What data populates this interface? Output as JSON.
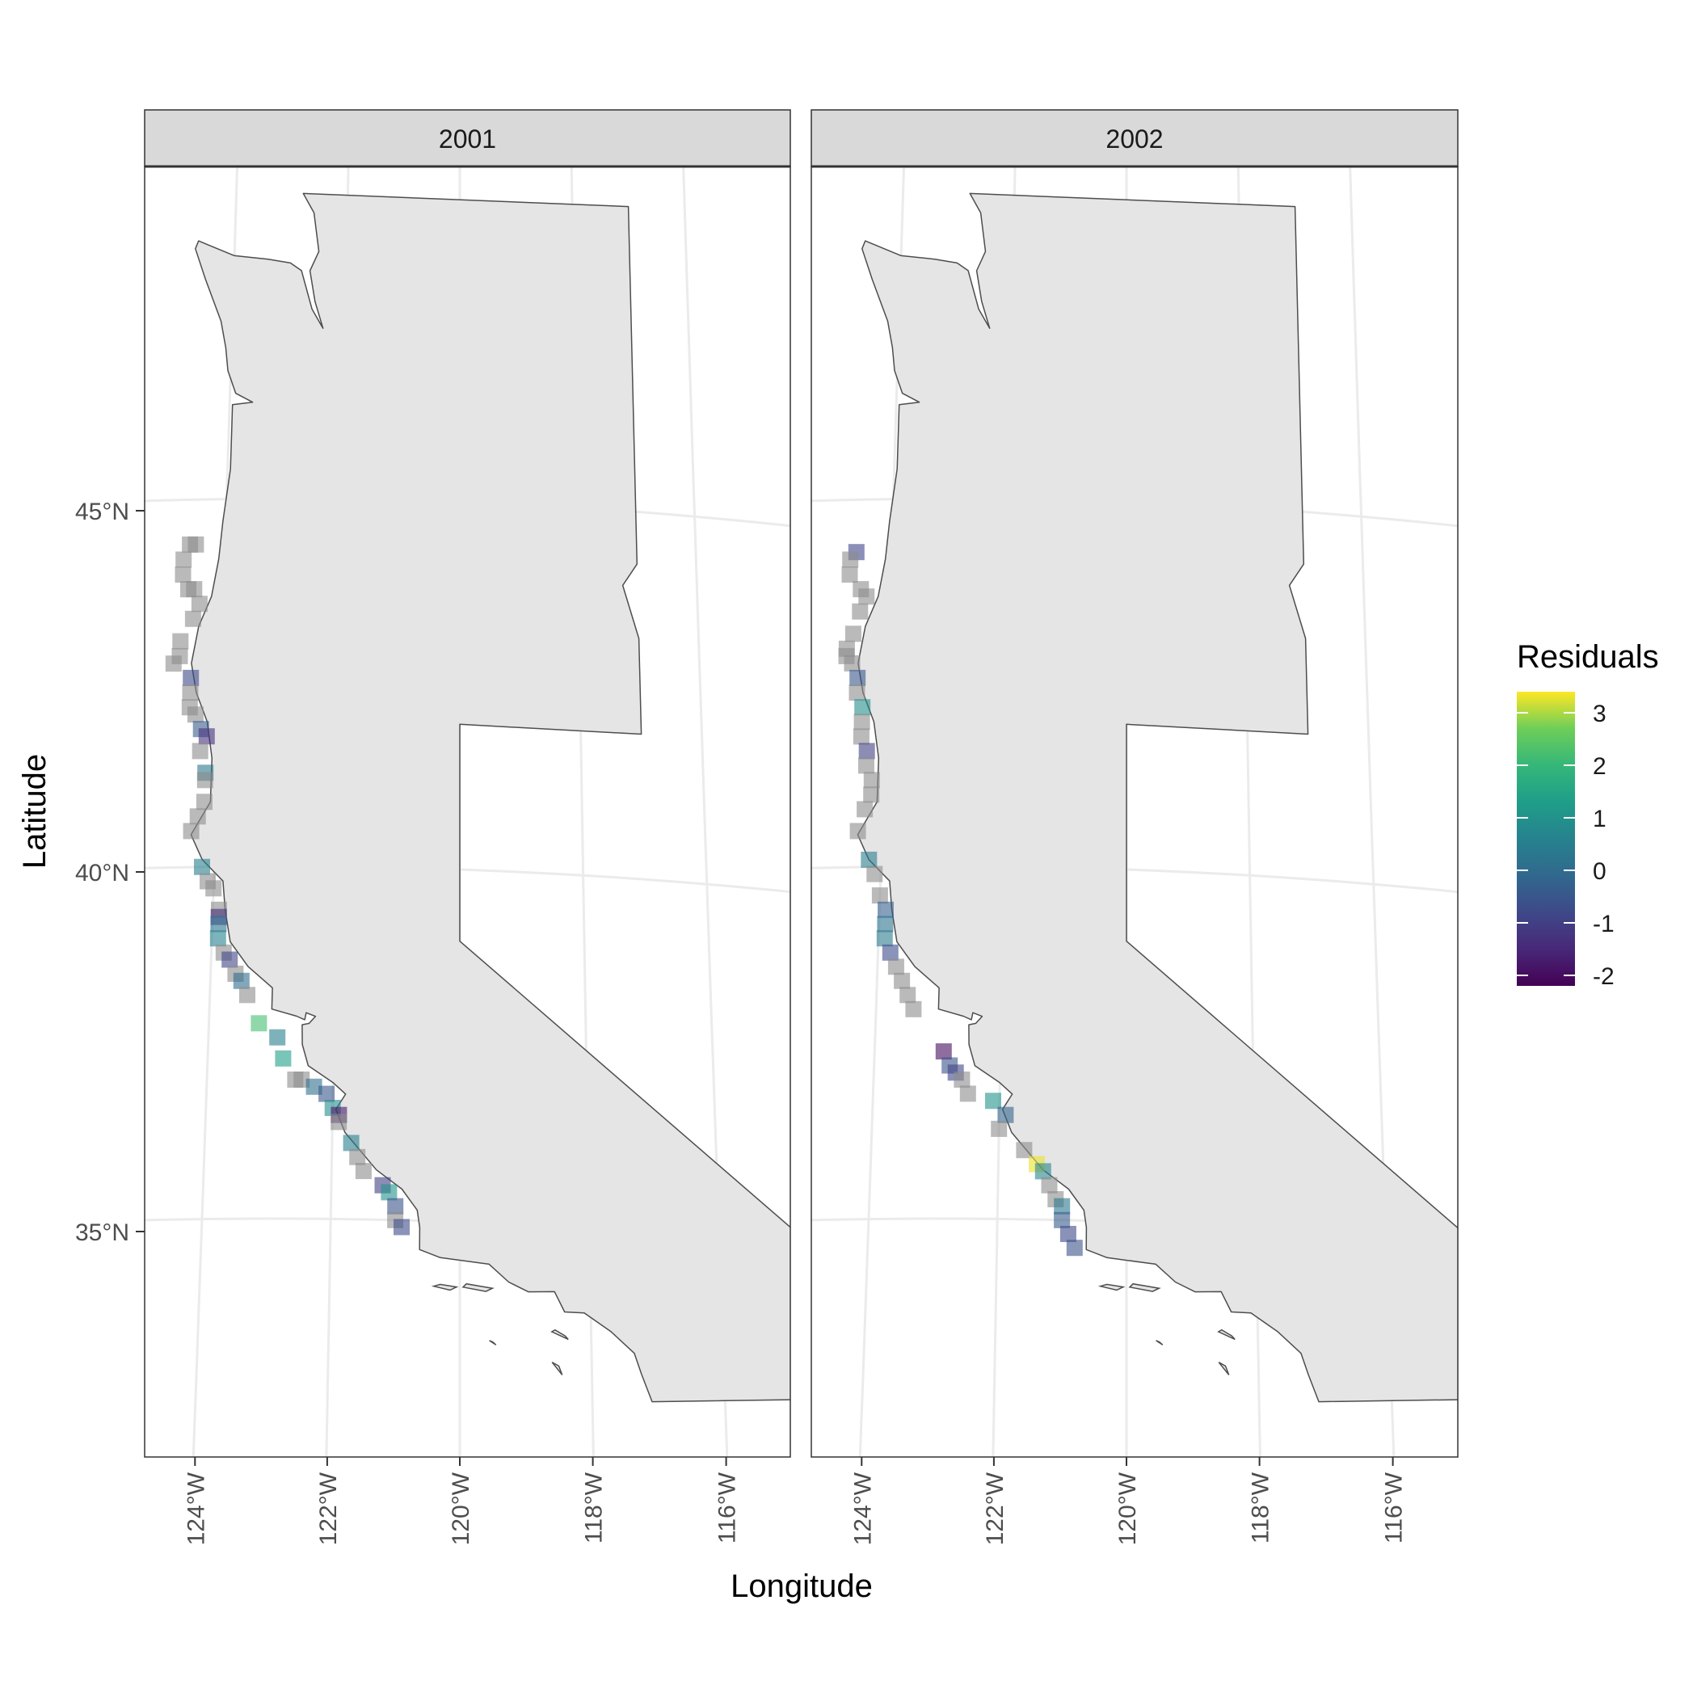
{
  "chart_data": {
    "type": "map",
    "title": "",
    "xlabel": "Longitude",
    "ylabel": "Latitude",
    "xlim": [
      -125.2,
      -114.3
    ],
    "ylim": [
      32.2,
      49.0
    ],
    "x_ticks": [
      {
        "value": -124,
        "label": "124°W"
      },
      {
        "value": -122,
        "label": "122°W"
      },
      {
        "value": -120,
        "label": "120°W"
      },
      {
        "value": -118,
        "label": "118°W"
      },
      {
        "value": -116,
        "label": "116°W"
      }
    ],
    "y_ticks": [
      {
        "value": 45,
        "label": "45°N"
      },
      {
        "value": 40,
        "label": "40°N"
      },
      {
        "value": 35,
        "label": "35°N"
      }
    ],
    "grid": true,
    "legend": {
      "title": "Residuals",
      "placement": "right",
      "colorscale": "viridis",
      "range": [
        -2.2,
        3.4
      ],
      "breaks": [
        {
          "value": 3,
          "label": "3"
        },
        {
          "value": 2,
          "label": "2"
        },
        {
          "value": 1,
          "label": "1"
        },
        {
          "value": 0,
          "label": "0"
        },
        {
          "value": -1,
          "label": "-1"
        },
        {
          "value": -2,
          "label": "-2"
        }
      ]
    },
    "colors": {
      "land_fill": "#e5e5e5",
      "land_stroke": "#4d4d4d",
      "na_point": "#8c8c8c",
      "strip_fill": "#d9d9d9",
      "grid": "#ebebeb"
    },
    "panels": [
      {
        "label": "2001",
        "points": [
          [
            -124.6,
            44.4,
            null
          ],
          [
            -124.5,
            44.4,
            null
          ],
          [
            -124.7,
            44.2,
            null
          ],
          [
            -124.7,
            44.0,
            null
          ],
          [
            -124.5,
            43.8,
            null
          ],
          [
            -124.6,
            43.8,
            null
          ],
          [
            -124.4,
            43.6,
            null
          ],
          [
            -124.5,
            43.4,
            null
          ],
          [
            -124.7,
            43.1,
            null
          ],
          [
            -124.7,
            42.9,
            null
          ],
          [
            -124.8,
            42.8,
            null
          ],
          [
            -124.5,
            42.6,
            -0.8
          ],
          [
            -124.5,
            42.4,
            null
          ],
          [
            -124.5,
            42.2,
            null
          ],
          [
            -124.4,
            42.1,
            null
          ],
          [
            -124.3,
            41.9,
            -0.4
          ],
          [
            -124.2,
            41.8,
            -1.3
          ],
          [
            -124.3,
            41.6,
            null
          ],
          [
            -124.2,
            41.3,
            0.3
          ],
          [
            -124.2,
            41.2,
            null
          ],
          [
            -124.2,
            40.9,
            null
          ],
          [
            -124.3,
            40.7,
            null
          ],
          [
            -124.4,
            40.5,
            null
          ],
          [
            -124.2,
            40.0,
            0.5
          ],
          [
            -124.1,
            39.8,
            null
          ],
          [
            -124.0,
            39.7,
            null
          ],
          [
            -123.9,
            39.4,
            null
          ],
          [
            -123.9,
            39.3,
            -1.4
          ],
          [
            -123.9,
            39.2,
            0.2
          ],
          [
            -123.9,
            39.0,
            0.6
          ],
          [
            -123.8,
            38.8,
            null
          ],
          [
            -123.7,
            38.7,
            -0.9
          ],
          [
            -123.6,
            38.5,
            null
          ],
          [
            -123.5,
            38.4,
            0.0
          ],
          [
            -123.4,
            38.2,
            null
          ],
          [
            -123.2,
            37.8,
            2.2
          ],
          [
            -122.9,
            37.6,
            0.5
          ],
          [
            -122.8,
            37.3,
            1.3
          ],
          [
            -122.6,
            37.0,
            null
          ],
          [
            -122.5,
            37.0,
            null
          ],
          [
            -122.3,
            36.9,
            0.1
          ],
          [
            -122.1,
            36.8,
            -0.5
          ],
          [
            -122.0,
            36.6,
            0.9
          ],
          [
            -121.9,
            36.5,
            -1.8
          ],
          [
            -121.9,
            36.4,
            null
          ],
          [
            -121.7,
            36.1,
            0.5
          ],
          [
            -121.6,
            35.9,
            null
          ],
          [
            -121.5,
            35.7,
            null
          ],
          [
            -121.2,
            35.5,
            -1.0
          ],
          [
            -121.1,
            35.4,
            1.0
          ],
          [
            -121.0,
            35.2,
            -0.6
          ],
          [
            -121.0,
            35.0,
            null
          ],
          [
            -120.9,
            34.9,
            -0.7
          ]
        ]
      },
      {
        "label": "2002",
        "points": [
          [
            -124.6,
            44.3,
            -0.9
          ],
          [
            -124.7,
            44.2,
            null
          ],
          [
            -124.7,
            44.0,
            null
          ],
          [
            -124.5,
            43.8,
            null
          ],
          [
            -124.4,
            43.7,
            null
          ],
          [
            -124.5,
            43.5,
            null
          ],
          [
            -124.6,
            43.2,
            null
          ],
          [
            -124.7,
            43.0,
            null
          ],
          [
            -124.7,
            42.9,
            null
          ],
          [
            -124.6,
            42.8,
            null
          ],
          [
            -124.5,
            42.6,
            -0.5
          ],
          [
            -124.5,
            42.4,
            null
          ],
          [
            -124.4,
            42.2,
            0.9
          ],
          [
            -124.4,
            42.0,
            null
          ],
          [
            -124.4,
            41.8,
            null
          ],
          [
            -124.3,
            41.6,
            -1.0
          ],
          [
            -124.3,
            41.4,
            null
          ],
          [
            -124.2,
            41.2,
            null
          ],
          [
            -124.2,
            41.0,
            null
          ],
          [
            -124.3,
            40.8,
            null
          ],
          [
            -124.4,
            40.5,
            null
          ],
          [
            -124.2,
            40.1,
            0.4
          ],
          [
            -124.1,
            39.9,
            null
          ],
          [
            -124.0,
            39.6,
            null
          ],
          [
            -123.9,
            39.4,
            -0.3
          ],
          [
            -123.9,
            39.2,
            0.2
          ],
          [
            -123.9,
            39.0,
            0.4
          ],
          [
            -123.8,
            38.8,
            -0.7
          ],
          [
            -123.7,
            38.6,
            null
          ],
          [
            -123.6,
            38.4,
            null
          ],
          [
            -123.5,
            38.2,
            null
          ],
          [
            -123.4,
            38.0,
            null
          ],
          [
            -122.9,
            37.4,
            -2.0
          ],
          [
            -122.8,
            37.2,
            -0.6
          ],
          [
            -122.7,
            37.1,
            -0.9
          ],
          [
            -122.6,
            37.0,
            null
          ],
          [
            -122.5,
            36.8,
            null
          ],
          [
            -122.1,
            36.7,
            1.0
          ],
          [
            -121.9,
            36.5,
            -0.2
          ],
          [
            -122.0,
            36.3,
            null
          ],
          [
            -121.6,
            36.0,
            null
          ],
          [
            -121.4,
            35.8,
            3.3
          ],
          [
            -121.3,
            35.7,
            0.7
          ],
          [
            -121.2,
            35.5,
            null
          ],
          [
            -121.1,
            35.3,
            null
          ],
          [
            -121.0,
            35.2,
            0.3
          ],
          [
            -121.0,
            35.0,
            -0.4
          ],
          [
            -120.9,
            34.8,
            -0.8
          ],
          [
            -120.8,
            34.6,
            -0.6
          ]
        ]
      }
    ]
  }
}
